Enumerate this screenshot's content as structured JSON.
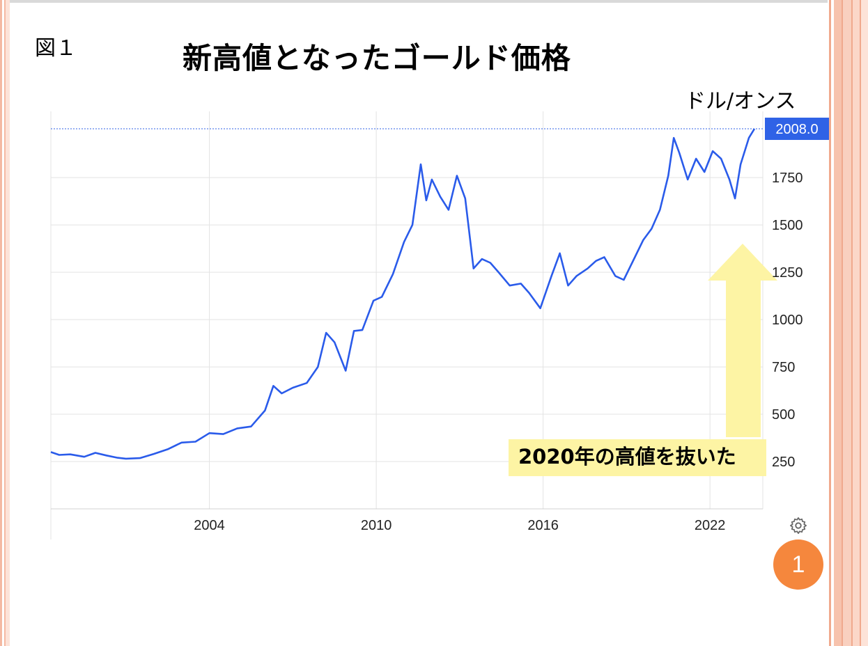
{
  "figure_label": "図１",
  "title": "新高値となったゴールド価格",
  "unit_label": "ドル/オンス",
  "current_value_label": "2008.0",
  "annotation": "2020年の高値を抜いた",
  "badge": "1",
  "colors": {
    "line": "#2a5bea",
    "current_tag": "#2f62e6",
    "arrow": "#fdf4a4",
    "badge": "#f5873d"
  },
  "icons": {
    "settings": "gear-icon"
  },
  "chart_data": {
    "type": "line",
    "title": "新高値となったゴールド価格",
    "ylabel": "ドル/オンス",
    "xlabel": "",
    "ylim": [
      0,
      2100
    ],
    "xlim": [
      1998.3,
      2023.9
    ],
    "y_ticks": [
      250,
      500,
      750,
      1000,
      1250,
      1500,
      1750
    ],
    "x_ticks": [
      2004,
      2010,
      2016,
      2022
    ],
    "grid": true,
    "current_value": 2008.0,
    "series": [
      {
        "points": [
          [
            1998.3,
            300
          ],
          [
            1998.6,
            285
          ],
          [
            1999.0,
            288
          ],
          [
            1999.5,
            275
          ],
          [
            1999.9,
            296
          ],
          [
            2000.3,
            282
          ],
          [
            2000.7,
            270
          ],
          [
            2001.0,
            265
          ],
          [
            2001.5,
            268
          ],
          [
            2002.0,
            290
          ],
          [
            2002.5,
            315
          ],
          [
            2003.0,
            350
          ],
          [
            2003.5,
            355
          ],
          [
            2004.0,
            400
          ],
          [
            2004.5,
            395
          ],
          [
            2005.0,
            425
          ],
          [
            2005.5,
            435
          ],
          [
            2006.0,
            520
          ],
          [
            2006.3,
            650
          ],
          [
            2006.6,
            610
          ],
          [
            2007.0,
            640
          ],
          [
            2007.5,
            665
          ],
          [
            2007.9,
            750
          ],
          [
            2008.2,
            930
          ],
          [
            2008.5,
            880
          ],
          [
            2008.9,
            730
          ],
          [
            2009.2,
            940
          ],
          [
            2009.5,
            945
          ],
          [
            2009.9,
            1100
          ],
          [
            2010.2,
            1120
          ],
          [
            2010.6,
            1240
          ],
          [
            2011.0,
            1410
          ],
          [
            2011.3,
            1500
          ],
          [
            2011.6,
            1820
          ],
          [
            2011.8,
            1630
          ],
          [
            2012.0,
            1740
          ],
          [
            2012.3,
            1650
          ],
          [
            2012.6,
            1580
          ],
          [
            2012.9,
            1760
          ],
          [
            2013.2,
            1640
          ],
          [
            2013.5,
            1270
          ],
          [
            2013.8,
            1320
          ],
          [
            2014.1,
            1300
          ],
          [
            2014.4,
            1250
          ],
          [
            2014.8,
            1180
          ],
          [
            2015.2,
            1190
          ],
          [
            2015.5,
            1140
          ],
          [
            2015.9,
            1060
          ],
          [
            2016.3,
            1230
          ],
          [
            2016.6,
            1350
          ],
          [
            2016.9,
            1180
          ],
          [
            2017.2,
            1230
          ],
          [
            2017.6,
            1270
          ],
          [
            2017.9,
            1310
          ],
          [
            2018.2,
            1330
          ],
          [
            2018.6,
            1230
          ],
          [
            2018.9,
            1210
          ],
          [
            2019.2,
            1300
          ],
          [
            2019.6,
            1420
          ],
          [
            2019.9,
            1480
          ],
          [
            2020.2,
            1580
          ],
          [
            2020.5,
            1760
          ],
          [
            2020.7,
            1960
          ],
          [
            2020.9,
            1880
          ],
          [
            2021.2,
            1740
          ],
          [
            2021.5,
            1850
          ],
          [
            2021.8,
            1780
          ],
          [
            2022.1,
            1890
          ],
          [
            2022.4,
            1850
          ],
          [
            2022.7,
            1740
          ],
          [
            2022.9,
            1640
          ],
          [
            2023.1,
            1820
          ],
          [
            2023.4,
            1960
          ],
          [
            2023.6,
            2008
          ]
        ]
      }
    ]
  }
}
